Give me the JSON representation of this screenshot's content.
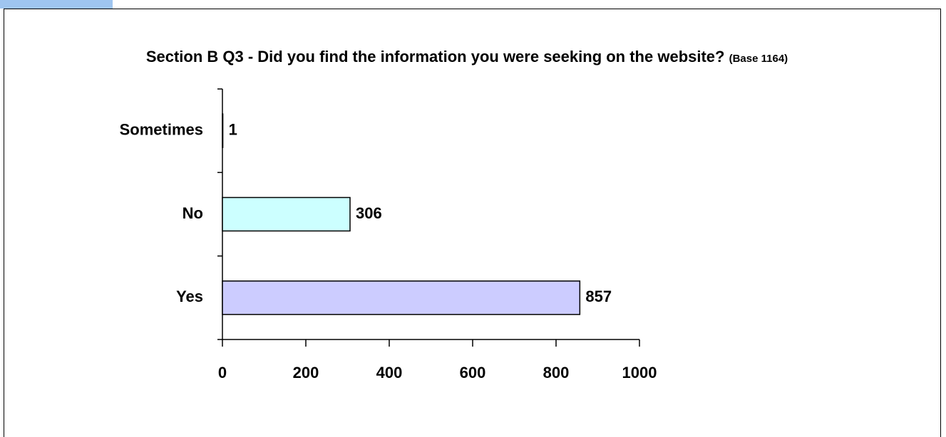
{
  "chart_data": {
    "type": "bar",
    "orientation": "horizontal",
    "title": "Section B Q3 - Did you find the information you were seeking on the website?",
    "subtitle": "(Base 1164)",
    "categories": [
      "Sometimes",
      "No",
      "Yes"
    ],
    "values": [
      1,
      306,
      857
    ],
    "colors": [
      "#ccffff",
      "#ccffff",
      "#ccccff"
    ],
    "xlim": [
      0,
      1000
    ],
    "xticks": [
      0,
      200,
      400,
      600,
      800,
      1000
    ],
    "grid": false
  }
}
